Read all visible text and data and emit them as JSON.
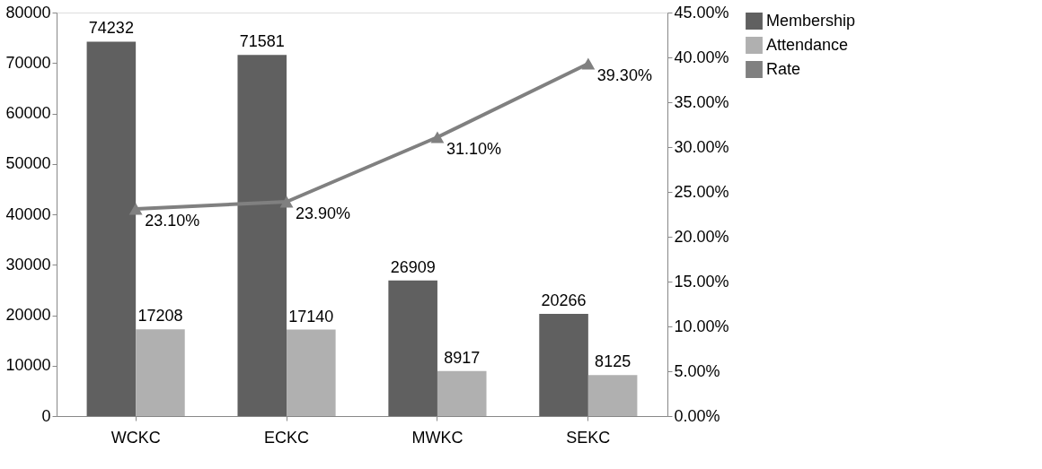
{
  "chart_data": {
    "type": "bar",
    "categories": [
      "WCKC",
      "ECKC",
      "MWKC",
      "SEKC"
    ],
    "series": [
      {
        "name": "Membership",
        "color": "#606060",
        "values": [
          74232,
          71581,
          26909,
          20266
        ],
        "value_labels": [
          "74232",
          "71581",
          "26909",
          "20266"
        ]
      },
      {
        "name": "Attendance",
        "color": "#b0b0b0",
        "values": [
          17208,
          17140,
          8917,
          8125
        ],
        "value_labels": [
          "17208",
          "17140",
          "8917",
          "8125"
        ]
      },
      {
        "name": "Rate",
        "type": "line",
        "axis": "y2",
        "color": "#808080",
        "marker": "triangle",
        "values": [
          23.1,
          23.9,
          31.1,
          39.3
        ],
        "value_labels": [
          "23.10%",
          "23.90%",
          "31.10%",
          "39.30%"
        ]
      }
    ],
    "ylim": [
      0,
      80000
    ],
    "yticks": [
      0,
      10000,
      20000,
      30000,
      40000,
      50000,
      60000,
      70000,
      80000
    ],
    "y2lim": [
      0,
      45
    ],
    "y2ticks": [
      {
        "value": 0,
        "label": "0.00%"
      },
      {
        "value": 5,
        "label": "5.00%"
      },
      {
        "value": 10,
        "label": "10.00%"
      },
      {
        "value": 15,
        "label": "15.00%"
      },
      {
        "value": 20,
        "label": "20.00%"
      },
      {
        "value": 25,
        "label": "25.00%"
      },
      {
        "value": 30,
        "label": "30.00%"
      },
      {
        "value": 35,
        "label": "35.00%"
      },
      {
        "value": 40,
        "label": "40.00%"
      },
      {
        "value": 45,
        "label": "45.00%"
      }
    ],
    "legend": "right",
    "grid": false
  }
}
